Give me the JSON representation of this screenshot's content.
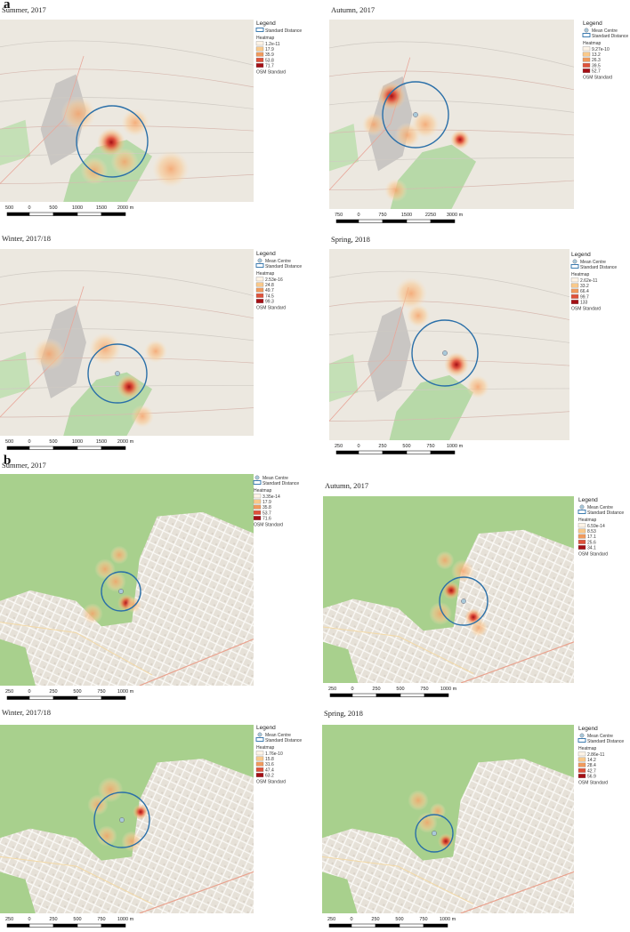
{
  "figure": {
    "panels": [
      {
        "label": "a",
        "maps": [
          {
            "title": "Summer, 2017",
            "legend": {
              "title": "Legend",
              "items": [
                "Standard Distance"
              ],
              "heatmap_title": "Heatmap",
              "heatmap_values": [
                "1.2e-11",
                "17.9",
                "35.9",
                "53.8",
                "71.7"
              ],
              "basemap": "OSM Standard"
            },
            "scale": [
              "500",
              "0",
              "500",
              "1000",
              "1500",
              "2000 m"
            ]
          },
          {
            "title": "Autumn, 2017",
            "legend": {
              "title": "Legend",
              "items": [
                "Mean Centre",
                "Standard Distance"
              ],
              "heatmap_title": "Heatmap",
              "heatmap_values": [
                "9.27e-10",
                "13.2",
                "26.3",
                "39.5",
                "52.7"
              ],
              "basemap": "OSM Standard"
            },
            "scale": [
              "750",
              "0",
              "750",
              "1500",
              "2250",
              "3000 m"
            ]
          },
          {
            "title": "Winter, 2017/18",
            "legend": {
              "title": "Legend",
              "items": [
                "Mean Centre",
                "Standard Distance"
              ],
              "heatmap_title": "Heatmap",
              "heatmap_values": [
                "2.53e-16",
                "24.8",
                "49.7",
                "74.5",
                "99.3"
              ],
              "basemap": "OSM Standard"
            },
            "scale": [
              "500",
              "0",
              "500",
              "1000",
              "1500",
              "2000 m"
            ]
          },
          {
            "title": "Spring, 2018",
            "legend": {
              "title": "Legend",
              "items": [
                "Mean Centre",
                "Standard Distance"
              ],
              "heatmap_title": "Heatmap",
              "heatmap_values": [
                "2.62e-11",
                "33.2",
                "66.4",
                "99.7",
                "133"
              ],
              "basemap": "OSM Standard"
            },
            "scale": [
              "250",
              "0",
              "250",
              "500",
              "750",
              "1000 m"
            ]
          }
        ]
      },
      {
        "label": "b",
        "maps": [
          {
            "title": "Summer, 2017",
            "legend": {
              "items": [
                "Mean Centre",
                "Standard Distance"
              ],
              "heatmap_title": "Heatmap",
              "heatmap_values": [
                "3.35e-14",
                "17.9",
                "35.8",
                "53.7",
                "71.6"
              ],
              "basemap": "OSM Standard"
            },
            "scale": [
              "250",
              "0",
              "250",
              "500",
              "750",
              "1000 m"
            ]
          },
          {
            "title": "Autumn, 2017",
            "legend": {
              "title": "Legend",
              "items": [
                "Mean Centre",
                "Standard Distance"
              ],
              "heatmap_title": "Heatmap",
              "heatmap_values": [
                "6.59e-14",
                "8.53",
                "17.1",
                "25.6",
                "34.1"
              ],
              "basemap": "OSM Standard"
            },
            "scale": [
              "250",
              "0",
              "250",
              "500",
              "750",
              "1000 m"
            ]
          },
          {
            "title": "Winter, 2017/18",
            "legend": {
              "title": "Legend",
              "items": [
                "Mean Centre",
                "Standard Distance"
              ],
              "heatmap_title": "Heatmap",
              "heatmap_values": [
                "1.76e-10",
                "15.8",
                "31.6",
                "47.4",
                "63.2"
              ],
              "basemap": "OSM Standard"
            },
            "scale": [
              "250",
              "0",
              "250",
              "500",
              "750",
              "1000 m"
            ]
          },
          {
            "title": "Spring, 2018",
            "legend": {
              "title": "Legend",
              "items": [
                "Mean Centre",
                "Standard Distance"
              ],
              "heatmap_title": "Heatmap",
              "heatmap_values": [
                "2.86e-11",
                "14.2",
                "28.4",
                "42.7",
                "56.9"
              ],
              "basemap": "OSM Standard"
            },
            "scale": [
              "250",
              "0",
              "250",
              "500",
              "750",
              "1000 m"
            ]
          }
        ]
      }
    ]
  }
}
